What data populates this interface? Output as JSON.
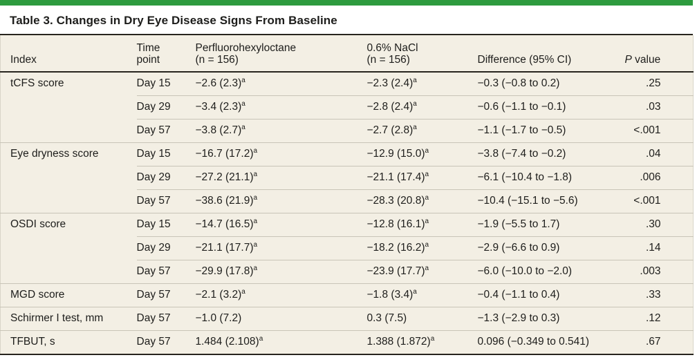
{
  "colors": {
    "accent_bar": "#2e9b3f",
    "table_background": "#f3efe4",
    "rule_dark": "#27241d",
    "rule_light": "#c8c4b7"
  },
  "title": "Table 3. Changes in Dry Eye Disease Signs From Baseline",
  "table": {
    "header": {
      "index": "Index",
      "time_line1": "Time",
      "time_line2": "point",
      "pfho_line1": "Perfluorohexyloctane",
      "pfho_line2": "(n = 156)",
      "nacl_line1": "0.6% NaCl",
      "nacl_line2": "(n = 156)",
      "difference": "Difference (95% CI)",
      "pvalue_italic": "P",
      "pvalue_rest": " value"
    },
    "footnote_marker": "a",
    "groups": [
      {
        "index": "tCFS score",
        "rows": [
          {
            "time": "Day 15",
            "pfho": "−2.6 (2.3)",
            "pfho_sup": "a",
            "nacl": "−2.3 (2.4)",
            "nacl_sup": "a",
            "diff": "−0.3 (−0.8 to 0.2)",
            "p": ".25"
          },
          {
            "time": "Day 29",
            "pfho": "−3.4 (2.3)",
            "pfho_sup": "a",
            "nacl": "−2.8 (2.4)",
            "nacl_sup": "a",
            "diff": "−0.6 (−1.1 to −0.1)",
            "p": ".03"
          },
          {
            "time": "Day 57",
            "pfho": "−3.8 (2.7)",
            "pfho_sup": "a",
            "nacl": "−2.7 (2.8)",
            "nacl_sup": "a",
            "diff": "−1.1 (−1.7 to −0.5)",
            "p": "<.001"
          }
        ]
      },
      {
        "index": "Eye dryness score",
        "rows": [
          {
            "time": "Day 15",
            "pfho": "−16.7 (17.2)",
            "pfho_sup": "a",
            "nacl": "−12.9 (15.0)",
            "nacl_sup": "a",
            "diff": "−3.8 (−7.4 to −0.2)",
            "p": ".04"
          },
          {
            "time": "Day 29",
            "pfho": "−27.2 (21.1)",
            "pfho_sup": "a",
            "nacl": "−21.1 (17.4)",
            "nacl_sup": "a",
            "diff": "−6.1 (−10.4 to −1.8)",
            "p": ".006"
          },
          {
            "time": "Day 57",
            "pfho": "−38.6 (21.9)",
            "pfho_sup": "a",
            "nacl": "−28.3 (20.8)",
            "nacl_sup": "a",
            "diff": "−10.4 (−15.1 to −5.6)",
            "p": "<.001"
          }
        ]
      },
      {
        "index": "OSDI score",
        "rows": [
          {
            "time": "Day 15",
            "pfho": "−14.7 (16.5)",
            "pfho_sup": "a",
            "nacl": "−12.8 (16.1)",
            "nacl_sup": "a",
            "diff": "−1.9 (−5.5 to 1.7)",
            "p": ".30"
          },
          {
            "time": "Day 29",
            "pfho": "−21.1 (17.7)",
            "pfho_sup": "a",
            "nacl": "−18.2 (16.2)",
            "nacl_sup": "a",
            "diff": "−2.9 (−6.6 to 0.9)",
            "p": ".14"
          },
          {
            "time": "Day 57",
            "pfho": "−29.9 (17.8)",
            "pfho_sup": "a",
            "nacl": "−23.9 (17.7)",
            "nacl_sup": "a",
            "diff": "−6.0 (−10.0 to −2.0)",
            "p": ".003"
          }
        ]
      },
      {
        "index": "MGD score",
        "rows": [
          {
            "time": "Day 57",
            "pfho": "−2.1 (3.2)",
            "pfho_sup": "a",
            "nacl": "−1.8 (3.4)",
            "nacl_sup": "a",
            "diff": "−0.4 (−1.1 to 0.4)",
            "p": ".33"
          }
        ]
      },
      {
        "index": "Schirmer I test, mm",
        "rows": [
          {
            "time": "Day 57",
            "pfho": "−1.0 (7.2)",
            "pfho_sup": "",
            "nacl": "0.3 (7.5)",
            "nacl_sup": "",
            "diff": "−1.3 (−2.9 to 0.3)",
            "p": ".12"
          }
        ]
      },
      {
        "index": "TFBUT, s",
        "rows": [
          {
            "time": "Day 57",
            "pfho": "1.484 (2.108)",
            "pfho_sup": "a",
            "nacl": "1.388 (1.872)",
            "nacl_sup": "a",
            "diff": "0.096 (−0.349 to 0.541)",
            "p": ".67"
          }
        ]
      }
    ]
  }
}
